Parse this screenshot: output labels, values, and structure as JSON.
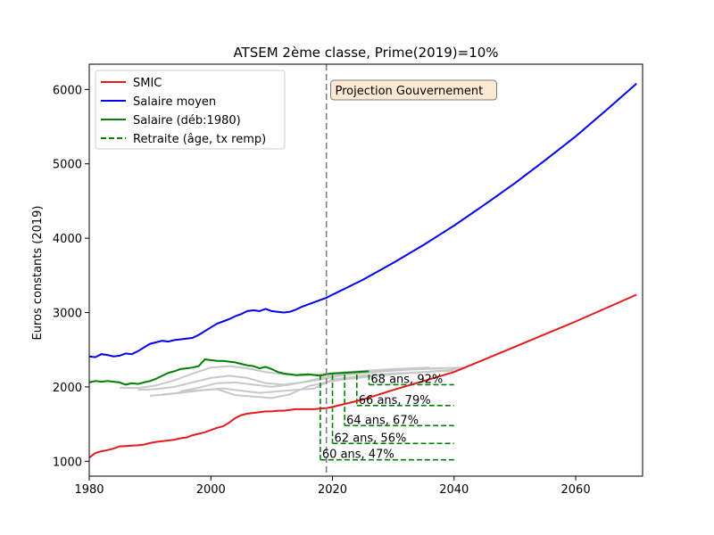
{
  "chart_data": {
    "type": "line",
    "title": "ATSEM 2ème classe, Prime(2019)=10%",
    "xlabel": "",
    "ylabel": "Euros constants (2019)",
    "xlim": [
      1980,
      2071
    ],
    "ylim": [
      800,
      6340
    ],
    "x_ticks": [
      1980,
      2000,
      2020,
      2040,
      2060
    ],
    "y_ticks": [
      1000,
      2000,
      3000,
      4000,
      5000,
      6000
    ],
    "grid": false,
    "legend_position": "top-left",
    "vline": {
      "x": 2019,
      "color": "#808080",
      "style": "dashed"
    },
    "annotation_box": {
      "text": "Projection Gouvernement",
      "x": 2020,
      "y": 5980
    },
    "series": [
      {
        "name": "SMIC",
        "color": "#e41a1c",
        "x": [
          1980,
          1981,
          1982,
          1983,
          1984,
          1985,
          1986,
          1987,
          1988,
          1989,
          1990,
          1991,
          1992,
          1993,
          1994,
          1995,
          1996,
          1997,
          1998,
          1999,
          2000,
          2001,
          2002,
          2003,
          2004,
          2005,
          2006,
          2007,
          2008,
          2009,
          2010,
          2011,
          2012,
          2013,
          2014,
          2015,
          2016,
          2017,
          2018,
          2019,
          2020,
          2025,
          2030,
          2035,
          2040,
          2045,
          2050,
          2055,
          2060,
          2065,
          2070
        ],
        "values": [
          1050,
          1110,
          1135,
          1150,
          1170,
          1200,
          1205,
          1210,
          1215,
          1225,
          1245,
          1260,
          1270,
          1280,
          1290,
          1310,
          1320,
          1350,
          1370,
          1390,
          1420,
          1450,
          1470,
          1520,
          1580,
          1620,
          1640,
          1650,
          1660,
          1670,
          1670,
          1680,
          1680,
          1690,
          1700,
          1700,
          1700,
          1700,
          1710,
          1715,
          1730,
          1830,
          1960,
          2080,
          2200,
          2370,
          2540,
          2710,
          2880,
          3060,
          3240
        ]
      },
      {
        "name": "Salaire moyen",
        "color": "#0000ee",
        "x": [
          1980,
          1981,
          1982,
          1983,
          1984,
          1985,
          1986,
          1987,
          1988,
          1989,
          1990,
          1991,
          1992,
          1993,
          1994,
          1995,
          1996,
          1997,
          1998,
          1999,
          2000,
          2001,
          2002,
          2003,
          2004,
          2005,
          2006,
          2007,
          2008,
          2009,
          2010,
          2011,
          2012,
          2013,
          2014,
          2015,
          2016,
          2017,
          2018,
          2019,
          2020,
          2025,
          2030,
          2035,
          2040,
          2045,
          2050,
          2055,
          2060,
          2065,
          2070
        ],
        "values": [
          2410,
          2400,
          2440,
          2430,
          2410,
          2420,
          2450,
          2440,
          2480,
          2530,
          2580,
          2600,
          2620,
          2610,
          2630,
          2640,
          2650,
          2660,
          2700,
          2750,
          2800,
          2850,
          2880,
          2910,
          2950,
          2980,
          3020,
          3030,
          3020,
          3050,
          3020,
          3010,
          3000,
          3010,
          3040,
          3080,
          3110,
          3140,
          3170,
          3200,
          3240,
          3440,
          3670,
          3910,
          4170,
          4450,
          4740,
          5050,
          5370,
          5720,
          6080
        ]
      },
      {
        "name": "Salaire (déb:1980)",
        "color": "#008000",
        "x": [
          1980,
          1981,
          1982,
          1983,
          1984,
          1985,
          1986,
          1987,
          1988,
          1989,
          1990,
          1991,
          1992,
          1993,
          1994,
          1995,
          1996,
          1997,
          1998,
          1999,
          2000,
          2001,
          2002,
          2003,
          2004,
          2005,
          2006,
          2007,
          2008,
          2009,
          2010,
          2011,
          2012,
          2013,
          2014,
          2015,
          2016,
          2017,
          2018,
          2019,
          2020,
          2022,
          2024,
          2026
        ],
        "values": [
          2060,
          2080,
          2070,
          2080,
          2070,
          2060,
          2030,
          2050,
          2040,
          2060,
          2080,
          2110,
          2150,
          2190,
          2210,
          2240,
          2250,
          2260,
          2280,
          2370,
          2360,
          2350,
          2350,
          2340,
          2330,
          2310,
          2290,
          2280,
          2250,
          2270,
          2240,
          2200,
          2180,
          2170,
          2160,
          2165,
          2170,
          2160,
          2150,
          2170,
          2180,
          2190,
          2200,
          2210
        ]
      },
      {
        "name": "Retraite (âge, tx remp)",
        "color": "#008000",
        "style": "dashed"
      }
    ],
    "retirement_annotations": [
      {
        "label": "60 ans, 47%",
        "start_year": 2018,
        "value": 1020
      },
      {
        "label": "62 ans, 56%",
        "start_year": 2020,
        "value": 1240
      },
      {
        "label": "64 ans, 67%",
        "start_year": 2022,
        "value": 1480
      },
      {
        "label": "66 ans, 79%",
        "start_year": 2024,
        "value": 1750
      },
      {
        "label": "68 ans, 92%",
        "start_year": 2026,
        "value": 2030
      }
    ],
    "retirement_end_year": 2040,
    "background_curves": [
      {
        "color": "#c8c8c8",
        "x": [
          1990,
          1993,
          1996,
          1999,
          2002,
          2005,
          2008,
          2011,
          2014,
          2017,
          2020,
          2025,
          2030,
          2035,
          2040
        ],
        "values": [
          1880,
          1900,
          1940,
          1960,
          1980,
          1950,
          1920,
          1940,
          1960,
          1980,
          2100,
          2150,
          2180,
          2200,
          2220
        ]
      },
      {
        "color": "#c8c8c8",
        "x": [
          1988,
          1991,
          1994,
          1997,
          2000,
          2003,
          2006,
          2009,
          2012,
          2015,
          2018,
          2022,
          2027,
          2032,
          2038
        ],
        "values": [
          1960,
          1970,
          2000,
          2060,
          2120,
          2150,
          2120,
          2050,
          2030,
          2060,
          2100,
          2160,
          2200,
          2230,
          2250
        ]
      },
      {
        "color": "#c8c8c8",
        "x": [
          1985,
          1988,
          1991,
          1994,
          1997,
          2000,
          2003,
          2006,
          2009,
          2012,
          2015,
          2019,
          2024,
          2030,
          2036
        ],
        "values": [
          1990,
          1985,
          2020,
          2090,
          2180,
          2260,
          2280,
          2250,
          2200,
          2170,
          2150,
          2180,
          2210,
          2240,
          2260
        ]
      },
      {
        "color": "#c8c8c8",
        "x": [
          1992,
          1995,
          1998,
          2001,
          2004,
          2007,
          2010,
          2013,
          2016,
          2020,
          2025,
          2030,
          2035,
          2041
        ],
        "values": [
          1900,
          1920,
          1950,
          1970,
          1890,
          1870,
          1850,
          1900,
          2010,
          2080,
          2130,
          2170,
          2200,
          2240
        ]
      },
      {
        "color": "#c8c8c8",
        "x": [
          1995,
          1998,
          2001,
          2004,
          2007,
          2010,
          2013,
          2016,
          2019,
          2024,
          2030,
          2036,
          2042
        ],
        "values": [
          1940,
          1990,
          2050,
          2060,
          2030,
          2000,
          2030,
          2080,
          2140,
          2190,
          2230,
          2250,
          2260
        ]
      }
    ]
  }
}
